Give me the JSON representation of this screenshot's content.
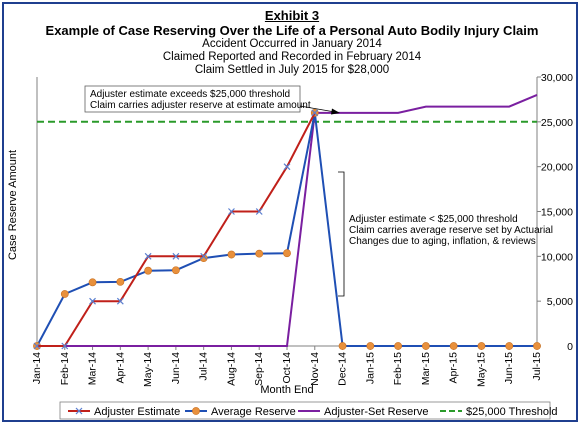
{
  "header": {
    "exhibit": "Exhibit 3",
    "title": "Example of Case Reserving Over the Life of a Personal Auto Bodily Injury Claim",
    "line1": "Accident Occurred in January 2014",
    "line2": "Claimed Reported and Recorded in February 2014",
    "line3": "Claim Settled in July 2015 for $28,000"
  },
  "chart_data": {
    "type": "line",
    "xlabel": "Month End",
    "ylabel": "Case Reserve Amount",
    "ylim": [
      0,
      30000
    ],
    "yticks": [
      "0",
      "5,000",
      "10,000",
      "15,000",
      "20,000",
      "25,000",
      "30,000"
    ],
    "grid": false,
    "legend_position": "bottom",
    "categories": [
      "Jan-14",
      "Feb-14",
      "Mar-14",
      "Apr-14",
      "May-14",
      "Jun-14",
      "Jul-14",
      "Aug-14",
      "Sep-14",
      "Oct-14",
      "Nov-14",
      "Dec-14",
      "Jan-15",
      "Feb-15",
      "Mar-15",
      "Apr-15",
      "May-15",
      "Jun-15",
      "Jul-15"
    ],
    "series": [
      {
        "name": "Adjuster Estimate",
        "color": "#c0201a",
        "marker": "x",
        "values": [
          0,
          0,
          5000,
          5000,
          10000,
          10000,
          10000,
          15000,
          15000,
          20000,
          26000,
          null,
          null,
          null,
          null,
          null,
          null,
          null,
          null
        ]
      },
      {
        "name": "Average Reserve",
        "color": "#1f4fb4",
        "marker": "circle",
        "values": [
          0,
          5800,
          7100,
          7150,
          8400,
          8450,
          9800,
          10200,
          10300,
          10350,
          26000,
          0,
          0,
          0,
          0,
          0,
          0,
          0,
          0
        ]
      },
      {
        "name": "Adjuster-Set Reserve",
        "color": "#7a1fa0",
        "marker": "none",
        "values": [
          0,
          0,
          0,
          0,
          0,
          0,
          0,
          0,
          0,
          0,
          26000,
          26000,
          26000,
          26000,
          26700,
          26700,
          26700,
          26700,
          28000
        ]
      },
      {
        "name": "$25,000 Threshold",
        "color": "#2a9a2a",
        "marker": "none",
        "dashed": true,
        "values": [
          25000,
          25000,
          25000,
          25000,
          25000,
          25000,
          25000,
          25000,
          25000,
          25000,
          25000,
          25000,
          25000,
          25000,
          25000,
          25000,
          25000,
          25000,
          25000
        ]
      }
    ],
    "annotations": [
      {
        "lines": [
          "Adjuster estimate exceeds $25,000 threshold",
          "Claim carries adjuster reserve at estimate amount"
        ]
      },
      {
        "lines": [
          "Adjuster estimate < $25,000 threshold",
          "Claim carries average reserve set by Actuarial",
          "Changes due to aging, inflation, & reviews"
        ]
      }
    ]
  }
}
